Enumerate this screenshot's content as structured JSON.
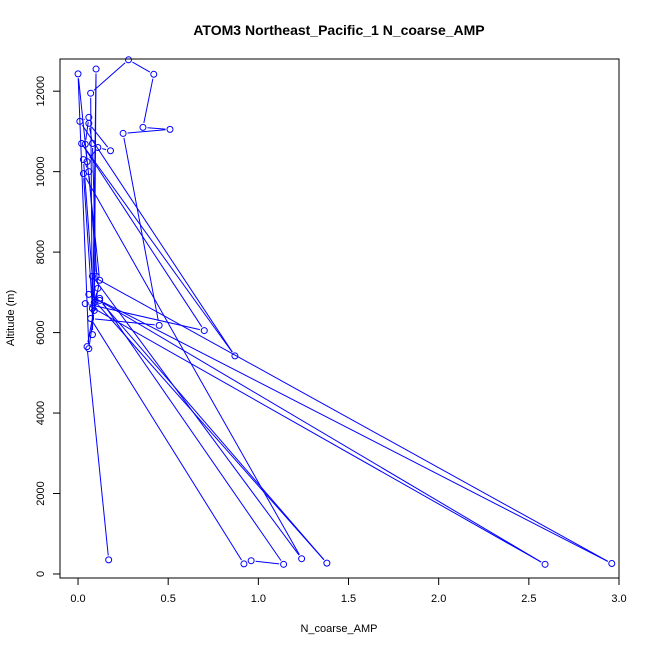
{
  "chart_data": {
    "type": "line",
    "title": "ATOM3 Northeast_Pacific_1 N_coarse_AMP",
    "xlabel": "N_coarse_AMP",
    "ylabel": "Altitude (m)",
    "xlim": [
      -0.1,
      3.0
    ],
    "ylim": [
      -100,
      12800
    ],
    "xticks": [
      0.0,
      0.5,
      1.0,
      1.5,
      2.0,
      2.5,
      3.0
    ],
    "xtick_labels": [
      "0.0",
      "0.5",
      "1.0",
      "1.5",
      "2.0",
      "2.5",
      "3.0"
    ],
    "yticks": [
      0,
      2000,
      4000,
      6000,
      8000,
      10000,
      12000
    ],
    "ytick_labels": [
      "0",
      "2000",
      "4000",
      "6000",
      "8000",
      "10000",
      "12000"
    ],
    "grid": false,
    "color": "#0000ff",
    "series": [
      {
        "x": [
          0.17,
          0.05,
          0.12,
          0.0,
          0.06,
          0.09,
          0.1,
          0.08,
          0.07,
          0.28,
          0.42,
          0.36,
          0.51,
          0.25,
          0.45,
          0.07,
          0.92,
          0.96,
          1.14,
          0.12,
          0.09,
          0.03,
          0.06,
          0.11,
          0.08,
          0.03,
          1.24,
          0.08,
          2.96,
          0.12,
          1.38,
          0.06,
          2.59,
          0.04,
          0.7,
          0.02,
          0.87,
          0.01,
          0.06,
          0.04,
          0.05,
          0.11,
          0.18,
          0.06,
          0.08,
          0.1
        ],
        "y": [
          350,
          5650,
          7300,
          12430,
          5600,
          6550,
          12550,
          5950,
          11950,
          12780,
          12420,
          11100,
          11050,
          10950,
          6180,
          6350,
          250,
          330,
          240,
          6850,
          6750,
          10300,
          10000,
          7100,
          6600,
          9950,
          380,
          7400,
          260,
          6800,
          270,
          6950,
          240,
          6720,
          6050,
          10700,
          5420,
          11250,
          11350,
          10680,
          10250,
          10600,
          10520,
          11200,
          10700,
          7400
        ]
      }
    ]
  }
}
